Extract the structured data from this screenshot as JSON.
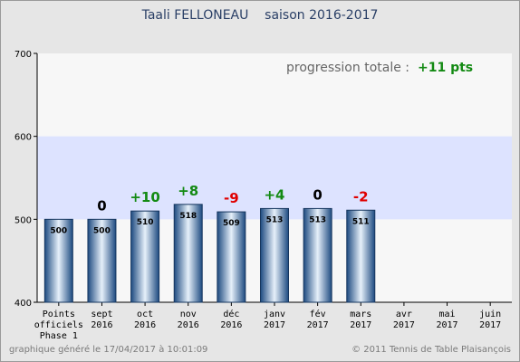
{
  "title": "Taali FELLONEAU    saison 2016-2017",
  "progression": {
    "label": "progression totale :",
    "value": "+11 pts"
  },
  "footer": {
    "left": "graphique généré le 17/04/2017 à 10:01:09",
    "right": "© 2011 Tennis de Table Plaisançois"
  },
  "colors": {
    "positive": "#138a13",
    "negative": "#e00000",
    "neutral": "#000000",
    "band": "#dde3ff",
    "plot_background": "#f7f7f7",
    "bar_dark": "#1d4a80",
    "bar_light": "#e6f0fa"
  },
  "chart_data": {
    "type": "bar",
    "title": "Taali FELLONEAU    saison 2016-2017",
    "categories": [
      [
        "Points",
        "officiels",
        "Phase 1"
      ],
      [
        "sept",
        "2016"
      ],
      [
        "oct",
        "2016"
      ],
      [
        "nov",
        "2016"
      ],
      [
        "déc",
        "2016"
      ],
      [
        "janv",
        "2017"
      ],
      [
        "fév",
        "2017"
      ],
      [
        "mars",
        "2017"
      ],
      [
        "avr",
        "2017"
      ],
      [
        "mai",
        "2017"
      ],
      [
        "juin",
        "2017"
      ]
    ],
    "values": [
      500,
      500,
      510,
      518,
      509,
      513,
      513,
      511,
      null,
      null,
      null
    ],
    "value_labels": [
      "500",
      "500",
      "510",
      "518",
      "509",
      "513",
      "513",
      "511",
      "",
      "",
      ""
    ],
    "deltas": [
      "",
      "0",
      "+10",
      "+8",
      "-9",
      "+4",
      "0",
      "-2",
      "",
      "",
      ""
    ],
    "ylim": [
      400,
      700
    ],
    "yticks": [
      400,
      500,
      600,
      700
    ],
    "highlight_band": [
      500,
      600
    ],
    "grid": true
  }
}
